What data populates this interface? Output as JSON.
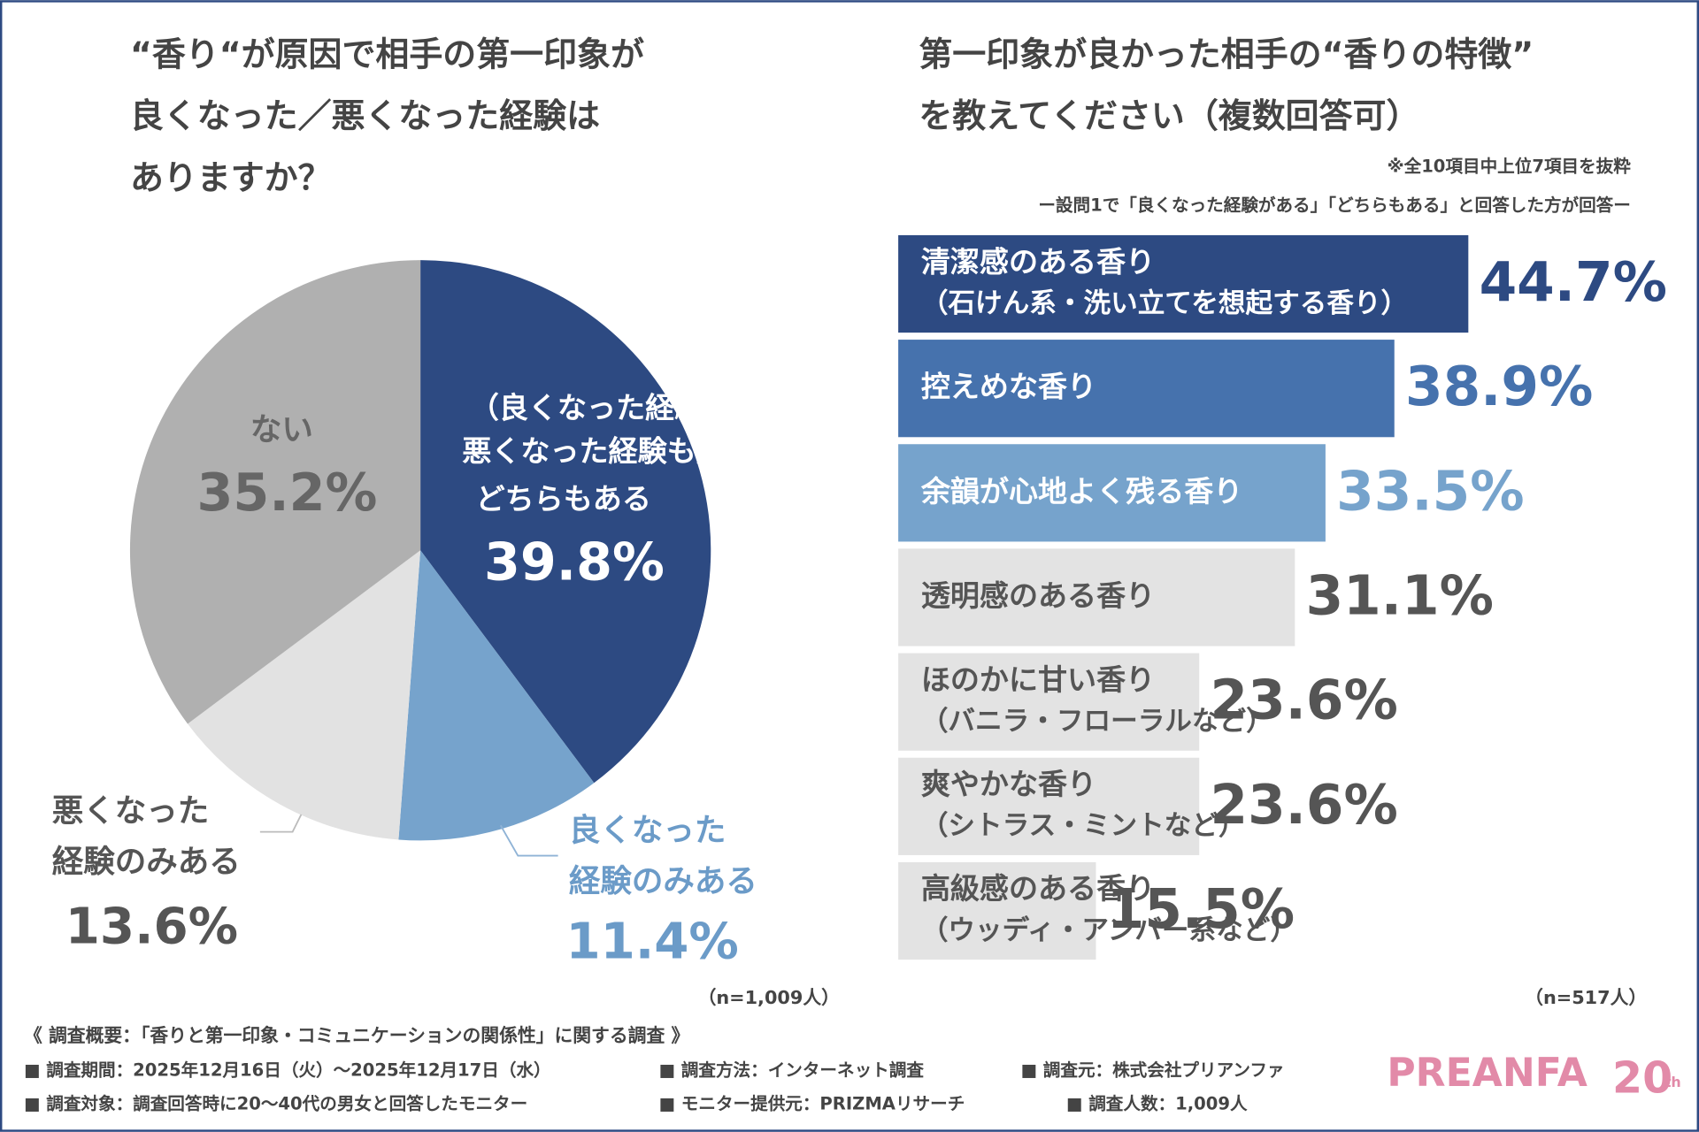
{
  "chart_data": [
    {
      "type": "pie",
      "title": [
        "“香り“が原因で相手の第一印象が",
        "良くなった／悪くなった経験は",
        "ありますか？"
      ],
      "categories": [
        [
          "（良くなった経験も",
          "悪くなった経験も）",
          "どちらもある"
        ],
        [
          "良くなった",
          "経験のみある"
        ],
        [
          "悪くなった",
          "経験のみある"
        ],
        [
          "ない"
        ]
      ],
      "values": [
        39.8,
        11.4,
        13.6,
        35.2
      ],
      "value_labels": [
        "39.8%",
        "11.4%",
        "13.6%",
        "35.2%"
      ],
      "colors": [
        "#2d4a82",
        "#76a3cc",
        "#e2e2e2",
        "#b0b0b0"
      ],
      "note": "（n=1,009人）"
    },
    {
      "type": "hbar",
      "title": [
        "第一印象が良かった相手の“香りの特徴”",
        "を教えてください（複数回答可）"
      ],
      "note_top": "※全10項目中上位7項目を抜粋",
      "subtitle": "ー設問1で「良くなった経験がある」「どちらもある」と回答した方が回答ー",
      "categories": [
        [
          "清潔感のある香り",
          "（石けん系・洗い立てを想起する香り）"
        ],
        [
          "控えめな香り"
        ],
        [
          "余韻が心地よく残る香り"
        ],
        [
          "透明感のある香り"
        ],
        [
          "ほのかに甘い香り",
          "（バニラ・フローラルなど）"
        ],
        [
          "爽やかな香り",
          "（シトラス・ミントなど）"
        ],
        [
          "高級感のある香り",
          "（ウッディ・アンバー系など）"
        ]
      ],
      "values": [
        44.7,
        38.9,
        33.5,
        31.1,
        23.6,
        23.6,
        15.5
      ],
      "value_labels": [
        "44.7%",
        "38.9%",
        "33.5%",
        "31.1%",
        "23.6%",
        "23.6%",
        "15.5%"
      ],
      "colors": [
        "#2d4a82",
        "#4672ad",
        "#76a3cc",
        "#e3e3e3",
        "#e3e3e3",
        "#e3e3e3",
        "#e3e3e3"
      ],
      "note": "（n=517人）"
    }
  ],
  "footer": {
    "heading": "《 調査概要：「香りと第一印象・コミュニケーションの関係性」に関する調査 》",
    "items": [
      "■ 調査期間：2025年12月16日（火）～2025年12月17日（水）",
      "■ 調査方法：インターネット調査",
      "■ 調査元：株式会社プリアンファ",
      "■ 調査対象：調査回答時に20～40代の男女と回答したモニター",
      "■ モニター提供元：PRIZMAリサーチ",
      "■ 調査人数：1,009人"
    ],
    "logo": "PREANFA",
    "logo_badge": "20",
    "logo_badge_sup": "th"
  }
}
